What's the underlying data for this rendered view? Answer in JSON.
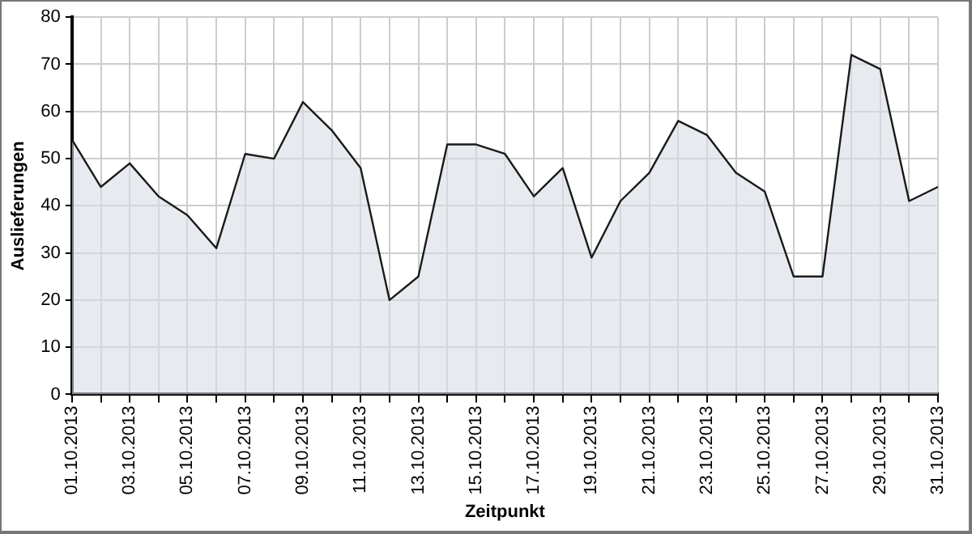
{
  "chart_data": {
    "type": "area",
    "xlabel": "Zeitpunkt",
    "ylabel": "Auslieferungen",
    "categories": [
      "01.10.2013",
      null,
      "03.10.2013",
      null,
      "05.10.2013",
      null,
      "07.10.2013",
      null,
      "09.10.2013",
      null,
      "11.10.2013",
      null,
      "13.10.2013",
      null,
      "15.10.2013",
      null,
      "17.10.2013",
      null,
      "19.10.2013",
      null,
      "21.10.2013",
      null,
      "23.10.2013",
      null,
      "25.10.2013",
      null,
      "27.10.2013",
      null,
      "29.10.2013",
      null,
      "31.10.2013"
    ],
    "series": [
      {
        "color": "#1a1a1a",
        "values": [
          54,
          44,
          49,
          42,
          38,
          31,
          51,
          50,
          62,
          56,
          48,
          20,
          25,
          53,
          53,
          51,
          42,
          48,
          29,
          41,
          47,
          58,
          55,
          47,
          43,
          25,
          25,
          72,
          69,
          41,
          44
        ]
      }
    ],
    "ylim": [
      0,
      80
    ],
    "yticks": [
      0,
      10,
      20,
      30,
      40,
      50,
      60,
      70,
      80
    ],
    "grid": true,
    "legend": false,
    "marker": "none",
    "line_style": "solid"
  }
}
